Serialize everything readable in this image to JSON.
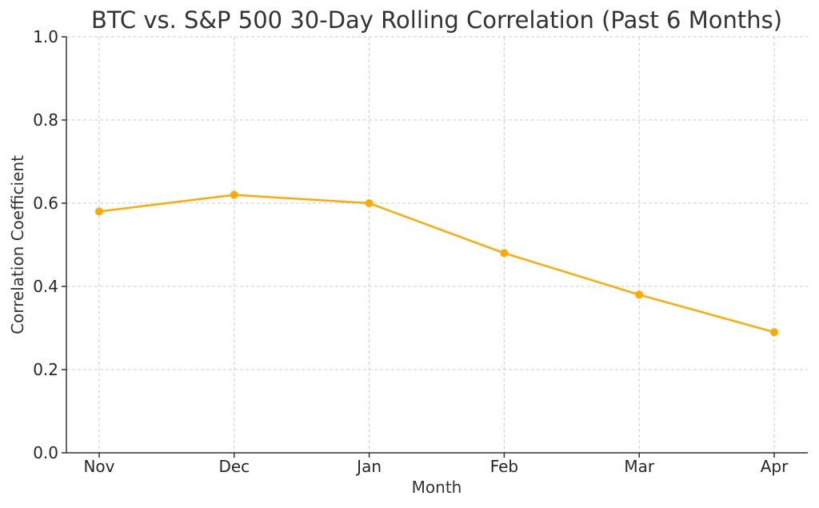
{
  "chart_data": {
    "type": "line",
    "title": "BTC vs. S&P 500 30-Day Rolling Correlation (Past 6 Months)",
    "xlabel": "Month",
    "ylabel": "Correlation Coefficient",
    "categories": [
      "Nov",
      "Dec",
      "Jan",
      "Feb",
      "Mar",
      "Apr"
    ],
    "series": [
      {
        "values": [
          0.58,
          0.62,
          0.6,
          0.48,
          0.38,
          0.29
        ]
      }
    ],
    "ylim": [
      0.0,
      1.0
    ],
    "yticks": [
      "0.0",
      "0.2",
      "0.4",
      "0.6",
      "0.8",
      "1.0"
    ],
    "grid": true,
    "line_color": "#FFAA00",
    "marker": "circle"
  }
}
